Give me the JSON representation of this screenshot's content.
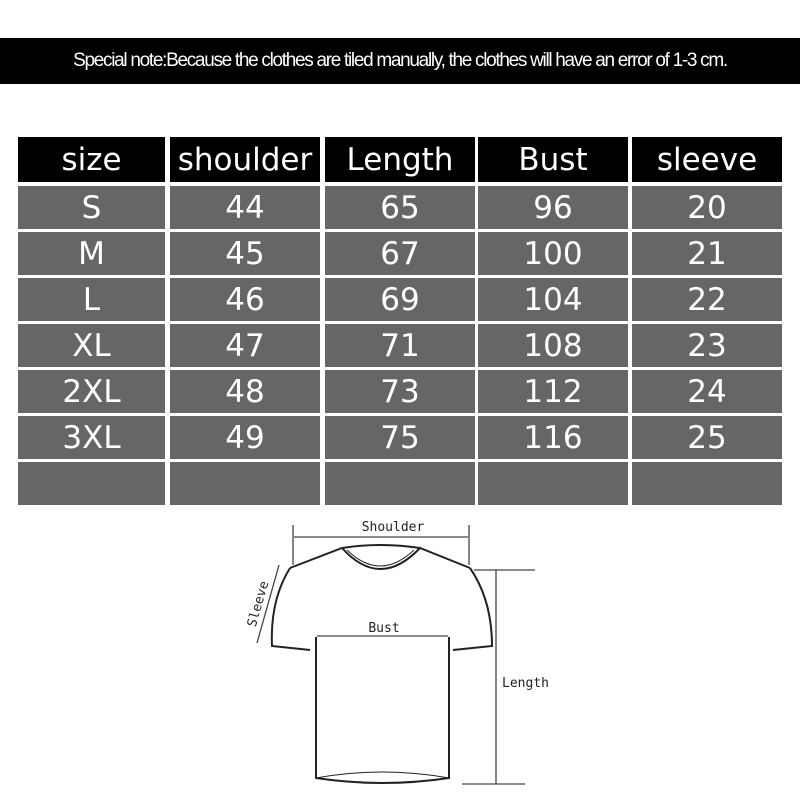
{
  "note": "Special note:Because the clothes are tiled manually, the clothes will have an error of 1-3 cm.",
  "table": {
    "headers": [
      "size",
      "shoulder",
      "Length",
      "Bust",
      "sleeve"
    ],
    "rows": [
      [
        "S",
        "44",
        "65",
        "96",
        "20"
      ],
      [
        "M",
        "45",
        "67",
        "100",
        "21"
      ],
      [
        "L",
        "46",
        "69",
        "104",
        "22"
      ],
      [
        "XL",
        "47",
        "71",
        "108",
        "23"
      ],
      [
        "2XL",
        "48",
        "73",
        "112",
        "24"
      ],
      [
        "3XL",
        "49",
        "75",
        "116",
        "25"
      ],
      [
        "",
        "",
        "",
        "",
        ""
      ]
    ]
  },
  "diagram": {
    "shoulder": "Shoulder",
    "bust": "Bust",
    "length": "Length",
    "sleeve": "Sleeve"
  },
  "colors": {
    "header_bg": "#000000",
    "row_bg": "#666666",
    "text": "#ffffff"
  }
}
